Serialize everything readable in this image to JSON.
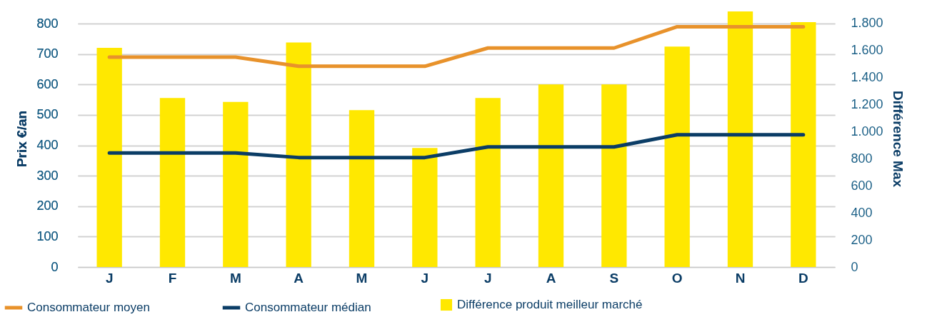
{
  "chart_data": {
    "type": "line",
    "categories": [
      "J",
      "F",
      "M",
      "A",
      "M",
      "J",
      "J",
      "A",
      "S",
      "O",
      "N",
      "D"
    ],
    "ylabel": "Prix €/an",
    "y2label": "Différence Max",
    "ylim": [
      0,
      845
    ],
    "yticks": [
      0,
      100,
      200,
      300,
      400,
      500,
      600,
      700,
      800
    ],
    "y2lim": [
      0,
      1900
    ],
    "y2ticks": [
      0,
      200,
      400,
      600,
      800,
      {
        "value": 1000,
        "label": "1.000"
      },
      {
        "value": 1200,
        "label": "1.200"
      },
      {
        "value": 1400,
        "label": "1.400"
      },
      {
        "value": 1600,
        "label": "1.600"
      },
      {
        "value": 1800,
        "label": "1.800"
      }
    ],
    "series": [
      {
        "name": "Différence produit meilleur marché",
        "type": "bar",
        "axis": "y2",
        "color": "#ffe800",
        "values": [
          1620,
          1250,
          1220,
          1660,
          1160,
          880,
          1250,
          1350,
          1350,
          1630,
          1890,
          1810
        ]
      },
      {
        "name": "Consommateur moyen",
        "color": "#e8922b",
        "values": [
          690,
          690,
          690,
          660,
          660,
          660,
          720,
          720,
          720,
          790,
          790,
          790
        ]
      },
      {
        "name": "Consommateur médian",
        "color": "#0b3d66",
        "values": [
          375,
          375,
          375,
          360,
          360,
          360,
          395,
          395,
          395,
          435,
          435,
          435
        ]
      }
    ],
    "grid": "y",
    "legend": "bottom"
  }
}
